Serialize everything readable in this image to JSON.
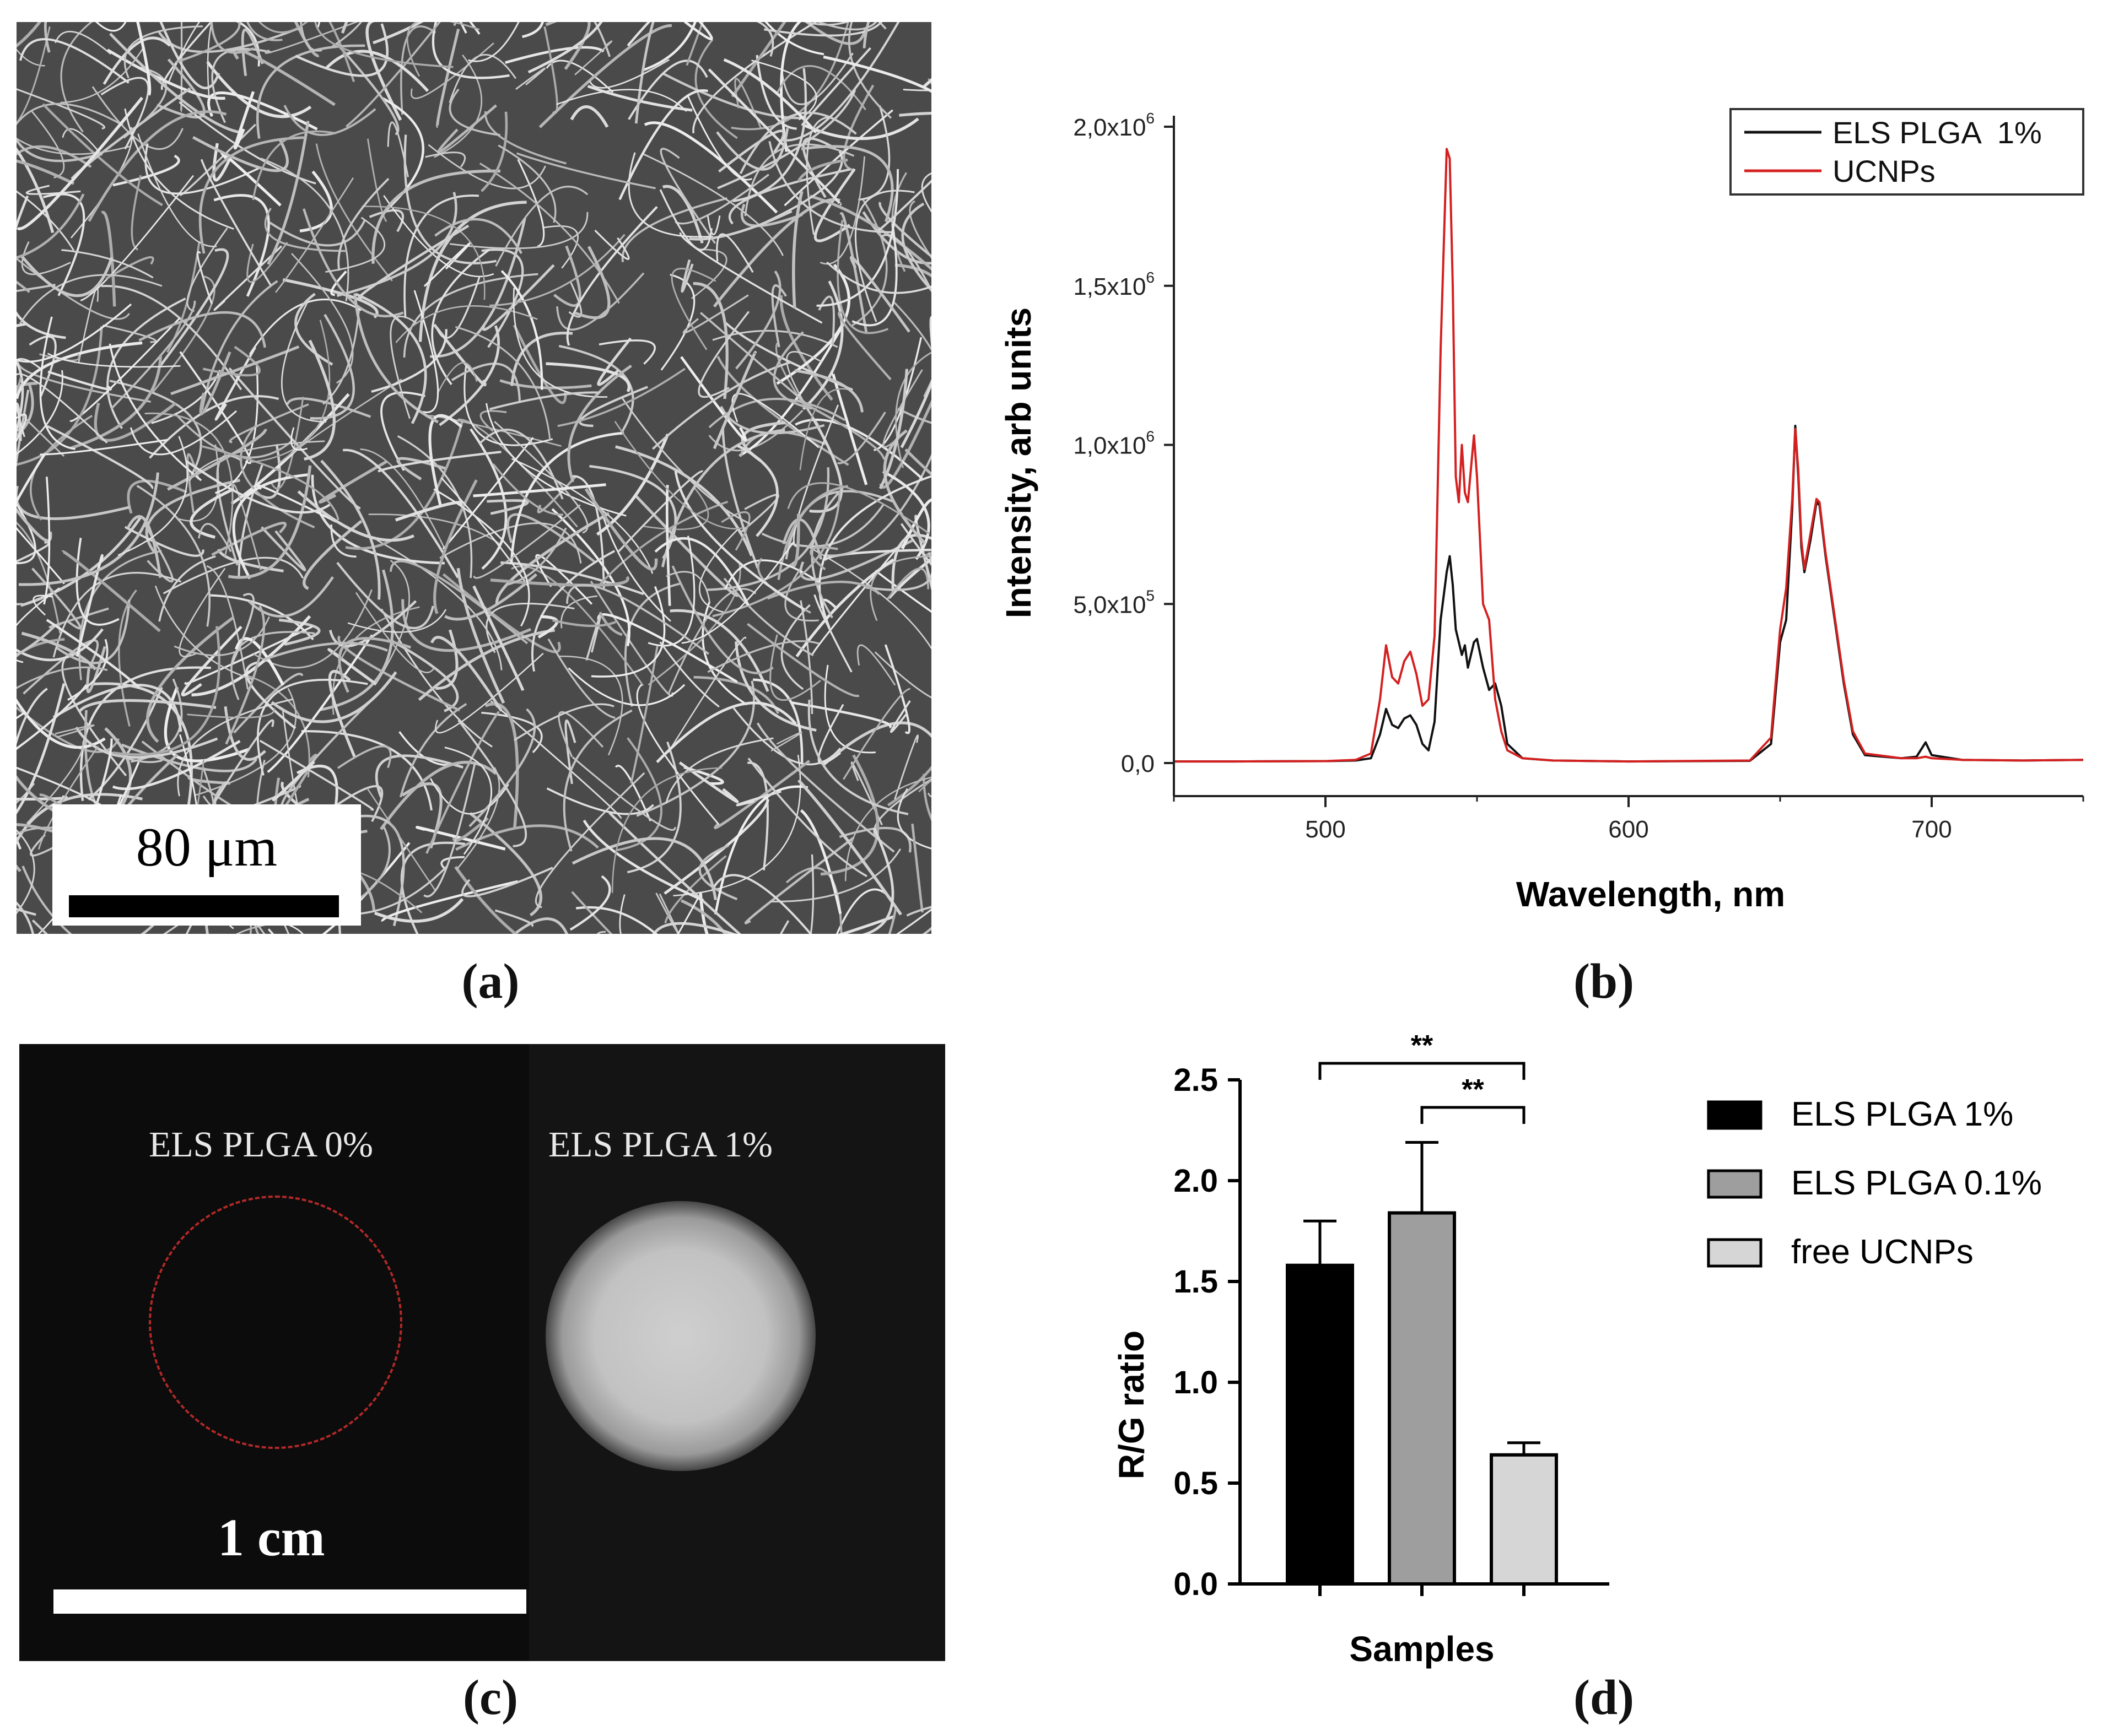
{
  "panel_labels": {
    "a": "(a)",
    "b": "(b)",
    "c": "(c)",
    "d": "(d)"
  },
  "panel_a": {
    "scale_bar_label": "80 μm"
  },
  "panel_c": {
    "left_label": "ELS PLGA 0%",
    "right_label": "ELS PLGA 1%",
    "scale_bar_label": "1 cm",
    "circle_color": "#b42828"
  },
  "chart_data": [
    {
      "type": "line",
      "panel": "b",
      "title": "",
      "xlabel": "Wavelength, nm",
      "ylabel": "Intensity, arb units",
      "xlim": [
        450,
        750
      ],
      "ylim": [
        0,
        2000000
      ],
      "x_ticks": [
        500,
        600,
        700
      ],
      "y_ticks": [
        0,
        500000,
        1000000,
        1500000,
        2000000
      ],
      "y_tick_labels": [
        {
          "mant": "0,0",
          "exp": ""
        },
        {
          "mant": "5,0x10",
          "exp": "5"
        },
        {
          "mant": "1,0x10",
          "exp": "6"
        },
        {
          "mant": "1,5x10",
          "exp": "6"
        },
        {
          "mant": "2,0x10",
          "exp": "6"
        }
      ],
      "legend_position": "top-right",
      "series": [
        {
          "name": "ELS PLGA  1%",
          "color": "#111111",
          "points": [
            [
              450,
              5000
            ],
            [
              470,
              5000
            ],
            [
              500,
              6000
            ],
            [
              510,
              8000
            ],
            [
              515,
              15000
            ],
            [
              518,
              90000
            ],
            [
              520,
              170000
            ],
            [
              522,
              120000
            ],
            [
              524,
              110000
            ],
            [
              526,
              140000
            ],
            [
              528,
              150000
            ],
            [
              530,
              120000
            ],
            [
              532,
              60000
            ],
            [
              534,
              40000
            ],
            [
              536,
              130000
            ],
            [
              538,
              450000
            ],
            [
              540,
              600000
            ],
            [
              541,
              650000
            ],
            [
              542,
              560000
            ],
            [
              543,
              420000
            ],
            [
              544,
              380000
            ],
            [
              545,
              340000
            ],
            [
              546,
              370000
            ],
            [
              547,
              300000
            ],
            [
              549,
              380000
            ],
            [
              550,
              390000
            ],
            [
              552,
              300000
            ],
            [
              554,
              230000
            ],
            [
              556,
              250000
            ],
            [
              558,
              180000
            ],
            [
              560,
              60000
            ],
            [
              565,
              15000
            ],
            [
              575,
              8000
            ],
            [
              600,
              5000
            ],
            [
              640,
              7000
            ],
            [
              647,
              60000
            ],
            [
              650,
              380000
            ],
            [
              652,
              450000
            ],
            [
              654,
              800000
            ],
            [
              655,
              1060000
            ],
            [
              656,
              900000
            ],
            [
              657,
              680000
            ],
            [
              658,
              600000
            ],
            [
              660,
              700000
            ],
            [
              662,
              820000
            ],
            [
              663,
              810000
            ],
            [
              665,
              650000
            ],
            [
              668,
              450000
            ],
            [
              671,
              250000
            ],
            [
              674,
              90000
            ],
            [
              678,
              25000
            ],
            [
              690,
              15000
            ],
            [
              695,
              20000
            ],
            [
              698,
              65000
            ],
            [
              700,
              25000
            ],
            [
              710,
              10000
            ],
            [
              730,
              8000
            ],
            [
              750,
              10000
            ]
          ]
        },
        {
          "name": "UCNPs",
          "color": "#d42020",
          "points": [
            [
              450,
              5000
            ],
            [
              470,
              5000
            ],
            [
              500,
              6000
            ],
            [
              510,
              10000
            ],
            [
              515,
              30000
            ],
            [
              518,
              200000
            ],
            [
              520,
              370000
            ],
            [
              522,
              270000
            ],
            [
              524,
              250000
            ],
            [
              526,
              320000
            ],
            [
              528,
              350000
            ],
            [
              530,
              280000
            ],
            [
              532,
              180000
            ],
            [
              534,
              200000
            ],
            [
              536,
              400000
            ],
            [
              538,
              1300000
            ],
            [
              540,
              1930000
            ],
            [
              541,
              1900000
            ],
            [
              542,
              1500000
            ],
            [
              543,
              900000
            ],
            [
              544,
              820000
            ],
            [
              545,
              1000000
            ],
            [
              546,
              850000
            ],
            [
              547,
              820000
            ],
            [
              549,
              1030000
            ],
            [
              550,
              900000
            ],
            [
              552,
              500000
            ],
            [
              554,
              450000
            ],
            [
              556,
              200000
            ],
            [
              558,
              100000
            ],
            [
              560,
              40000
            ],
            [
              565,
              15000
            ],
            [
              575,
              8000
            ],
            [
              600,
              5000
            ],
            [
              640,
              8000
            ],
            [
              647,
              80000
            ],
            [
              650,
              420000
            ],
            [
              652,
              550000
            ],
            [
              654,
              830000
            ],
            [
              655,
              1050000
            ],
            [
              656,
              920000
            ],
            [
              657,
              700000
            ],
            [
              658,
              610000
            ],
            [
              660,
              720000
            ],
            [
              662,
              830000
            ],
            [
              663,
              820000
            ],
            [
              665,
              660000
            ],
            [
              668,
              460000
            ],
            [
              671,
              260000
            ],
            [
              674,
              100000
            ],
            [
              678,
              30000
            ],
            [
              690,
              15000
            ],
            [
              695,
              15000
            ],
            [
              698,
              20000
            ],
            [
              700,
              15000
            ],
            [
              710,
              10000
            ],
            [
              730,
              8000
            ],
            [
              750,
              10000
            ]
          ]
        }
      ]
    },
    {
      "type": "bar",
      "panel": "d",
      "title": "",
      "xlabel": "Samples",
      "ylabel": "R/G ratio",
      "ylim": [
        0,
        2.5
      ],
      "y_ticks": [
        "0.0",
        "0.5",
        "1.0",
        "1.5",
        "2.0",
        "2.5"
      ],
      "categories": [
        "ELS PLGA 1%",
        "ELS PLGA 0.1%",
        "free UCNPs"
      ],
      "values": [
        1.58,
        1.84,
        0.64
      ],
      "errors": [
        0.22,
        0.35,
        0.06
      ],
      "colors": [
        "#000000",
        "#9e9e9e",
        "#d6d6d6"
      ],
      "legend_position": "right",
      "significance": [
        {
          "from": 0,
          "to": 2,
          "label": "**"
        },
        {
          "from": 1,
          "to": 2,
          "label": "**"
        }
      ]
    }
  ]
}
